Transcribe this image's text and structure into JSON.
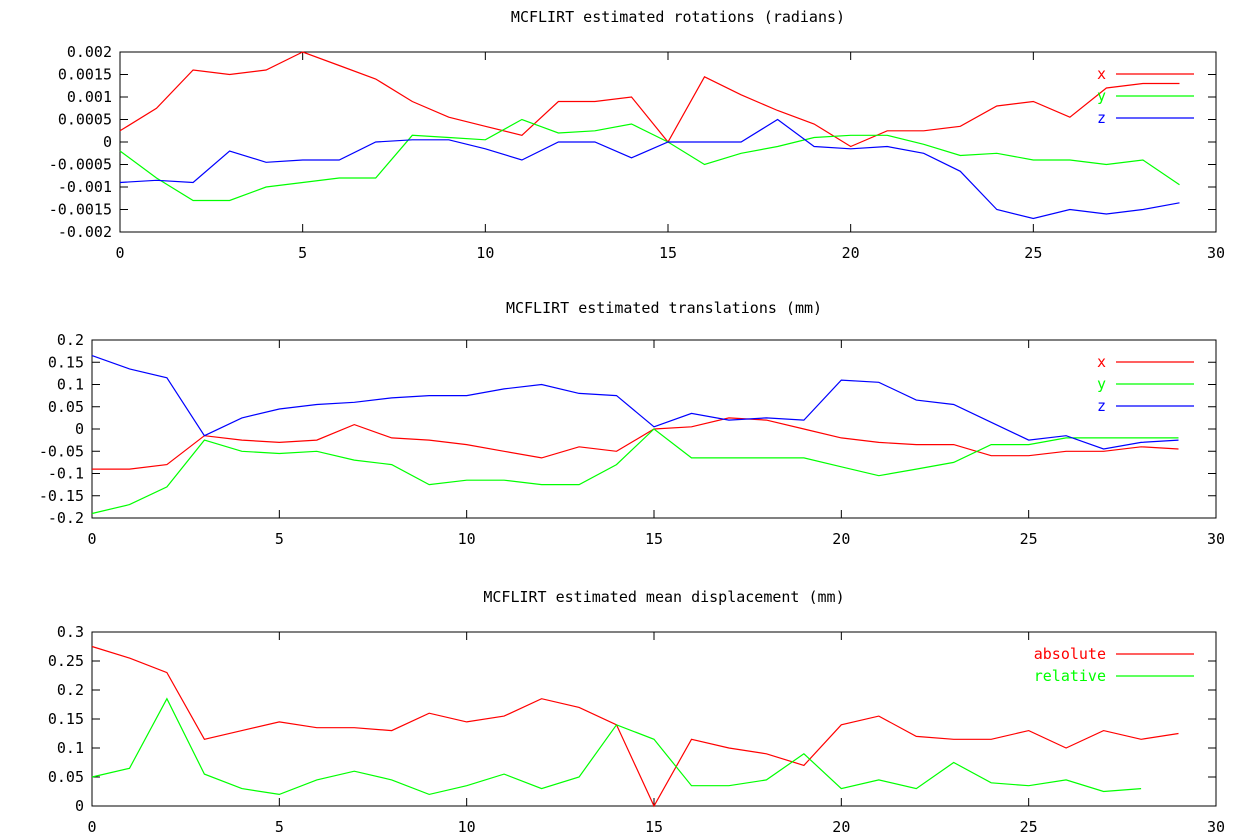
{
  "chart_data": [
    {
      "type": "line",
      "title": "MCFLIRT estimated rotations (radians)",
      "xlabel": "",
      "ylabel": "",
      "xlim": [
        0,
        30
      ],
      "ylim": [
        -0.002,
        0.002
      ],
      "xticks": [
        0,
        5,
        10,
        15,
        20,
        25,
        30
      ],
      "xtick_labels": [
        "0",
        "5",
        "10",
        "15",
        "20",
        "25",
        "30"
      ],
      "yticks": [
        0.002,
        0.0015,
        0.001,
        0.0005,
        0,
        -0.0005,
        -0.001,
        -0.0015,
        -0.002
      ],
      "ytick_labels": [
        "0.002",
        "0.0015",
        "0.001",
        "0.0005",
        "0",
        "-0.0005",
        "-0.001",
        "-0.0015",
        "-0.002"
      ],
      "grid": false,
      "legend_position": "top-right",
      "x": [
        0,
        1,
        2,
        3,
        4,
        5,
        6,
        7,
        8,
        9,
        10,
        11,
        12,
        13,
        14,
        15,
        16,
        17,
        18,
        19,
        20,
        21,
        22,
        23,
        24,
        25,
        26,
        27,
        28,
        29
      ],
      "series": [
        {
          "name": "x",
          "color": "#ff0000",
          "values": [
            0.00025,
            0.00075,
            0.0016,
            0.0015,
            0.0016,
            0.002,
            0.0017,
            0.0014,
            0.0009,
            0.00055,
            0.00035,
            0.00015,
            0.0009,
            0.0009,
            0.001,
            0.0,
            0.00145,
            0.00105,
            0.0007,
            0.0004,
            -0.0001,
            0.00025,
            0.00025,
            0.00035,
            0.0008,
            0.0009,
            0.00055,
            0.0012,
            0.0013,
            0.0013
          ]
        },
        {
          "name": "y",
          "color": "#00ff00",
          "values": [
            -0.0002,
            -0.0008,
            -0.0013,
            -0.0013,
            -0.001,
            -0.0009,
            -0.0008,
            -0.0008,
            0.00015,
            0.0001,
            5e-05,
            0.0005,
            0.0002,
            0.00025,
            0.0004,
            0.0,
            -0.0005,
            -0.00025,
            -0.0001,
            0.0001,
            0.00015,
            0.00015,
            -5e-05,
            -0.0003,
            -0.00025,
            -0.0004,
            -0.0004,
            -0.0005,
            -0.0004,
            -0.00095
          ]
        },
        {
          "name": "z",
          "color": "#0000ff",
          "values": [
            -0.0009,
            -0.00085,
            -0.0009,
            -0.0002,
            -0.00045,
            -0.0004,
            -0.0004,
            0.0,
            5e-05,
            5e-05,
            -0.00015,
            -0.0004,
            0.0,
            0.0,
            -0.00035,
            0.0,
            0.0,
            0.0,
            0.0005,
            -0.0001,
            -0.00015,
            -0.0001,
            -0.00025,
            -0.00065,
            -0.0015,
            -0.0017,
            -0.0015,
            -0.0016,
            -0.0015,
            -0.00135
          ]
        }
      ]
    },
    {
      "type": "line",
      "title": "MCFLIRT estimated translations (mm)",
      "xlabel": "",
      "ylabel": "",
      "xlim": [
        0,
        30
      ],
      "ylim": [
        -0.2,
        0.2
      ],
      "xticks": [
        0,
        5,
        10,
        15,
        20,
        25,
        30
      ],
      "xtick_labels": [
        "0",
        "5",
        "10",
        "15",
        "20",
        "25",
        "30"
      ],
      "yticks": [
        0.2,
        0.15,
        0.1,
        0.05,
        0,
        -0.05,
        -0.1,
        -0.15,
        -0.2
      ],
      "ytick_labels": [
        "0.2",
        "0.15",
        "0.1",
        "0.05",
        "0",
        "-0.05",
        "-0.1",
        "-0.15",
        "-0.2"
      ],
      "grid": false,
      "legend_position": "top-right",
      "x": [
        0,
        1,
        2,
        3,
        4,
        5,
        6,
        7,
        8,
        9,
        10,
        11,
        12,
        13,
        14,
        15,
        16,
        17,
        18,
        19,
        20,
        21,
        22,
        23,
        24,
        25,
        26,
        27,
        28,
        29
      ],
      "series": [
        {
          "name": "x",
          "color": "#ff0000",
          "values": [
            -0.09,
            -0.09,
            -0.08,
            -0.015,
            -0.025,
            -0.03,
            -0.025,
            0.01,
            -0.02,
            -0.025,
            -0.035,
            -0.05,
            -0.065,
            -0.04,
            -0.05,
            0.0,
            0.005,
            0.025,
            0.02,
            0.0,
            -0.02,
            -0.03,
            -0.035,
            -0.035,
            -0.06,
            -0.06,
            -0.05,
            -0.05,
            -0.04,
            -0.045
          ]
        },
        {
          "name": "y",
          "color": "#00ff00",
          "values": [
            -0.19,
            -0.17,
            -0.13,
            -0.025,
            -0.05,
            -0.055,
            -0.05,
            -0.07,
            -0.08,
            -0.125,
            -0.115,
            -0.115,
            -0.125,
            -0.125,
            -0.08,
            0.0,
            -0.065,
            -0.065,
            -0.065,
            -0.065,
            -0.085,
            -0.105,
            -0.09,
            -0.075,
            -0.035,
            -0.035,
            -0.02,
            -0.02,
            -0.02,
            -0.02
          ]
        },
        {
          "name": "z",
          "color": "#0000ff",
          "values": [
            0.165,
            0.135,
            0.115,
            -0.015,
            0.025,
            0.045,
            0.055,
            0.06,
            0.07,
            0.075,
            0.075,
            0.09,
            0.1,
            0.08,
            0.075,
            0.005,
            0.035,
            0.02,
            0.025,
            0.02,
            0.11,
            0.105,
            0.065,
            0.055,
            0.015,
            -0.025,
            -0.015,
            -0.045,
            -0.03,
            -0.025
          ]
        }
      ]
    },
    {
      "type": "line",
      "title": "MCFLIRT estimated mean displacement (mm)",
      "xlabel": "",
      "ylabel": "",
      "xlim": [
        0,
        30
      ],
      "ylim": [
        0,
        0.3
      ],
      "xticks": [
        0,
        5,
        10,
        15,
        20,
        25,
        30
      ],
      "xtick_labels": [
        "0",
        "5",
        "10",
        "15",
        "20",
        "25",
        "30"
      ],
      "yticks": [
        0.3,
        0.25,
        0.2,
        0.15,
        0.1,
        0.05,
        0
      ],
      "ytick_labels": [
        "0.3",
        "0.25",
        "0.2",
        "0.15",
        "0.1",
        "0.05",
        "0"
      ],
      "grid": false,
      "legend_position": "top-right",
      "series": [
        {
          "name": "absolute",
          "color": "#ff0000",
          "x": [
            0,
            1,
            2,
            3,
            4,
            5,
            6,
            7,
            8,
            9,
            10,
            11,
            12,
            13,
            14,
            15,
            16,
            17,
            18,
            19,
            20,
            21,
            22,
            23,
            24,
            25,
            26,
            27,
            28,
            29
          ],
          "values": [
            0.275,
            0.255,
            0.23,
            0.115,
            0.13,
            0.145,
            0.135,
            0.135,
            0.13,
            0.16,
            0.145,
            0.155,
            0.185,
            0.17,
            0.14,
            0.0,
            0.115,
            0.1,
            0.09,
            0.07,
            0.14,
            0.155,
            0.12,
            0.115,
            0.115,
            0.13,
            0.1,
            0.13,
            0.115,
            0.125
          ]
        },
        {
          "name": "relative",
          "color": "#00ff00",
          "x": [
            0,
            1,
            2,
            3,
            4,
            5,
            6,
            7,
            8,
            9,
            10,
            11,
            12,
            13,
            14,
            15,
            16,
            17,
            18,
            19,
            20,
            21,
            22,
            23,
            24,
            25,
            26,
            27,
            28
          ],
          "values": [
            0.05,
            0.065,
            0.185,
            0.055,
            0.03,
            0.02,
            0.045,
            0.06,
            0.045,
            0.02,
            0.035,
            0.055,
            0.03,
            0.05,
            0.14,
            0.115,
            0.035,
            0.035,
            0.045,
            0.09,
            0.03,
            0.045,
            0.03,
            0.075,
            0.04,
            0.035,
            0.045,
            0.025,
            0.03
          ]
        }
      ]
    }
  ]
}
